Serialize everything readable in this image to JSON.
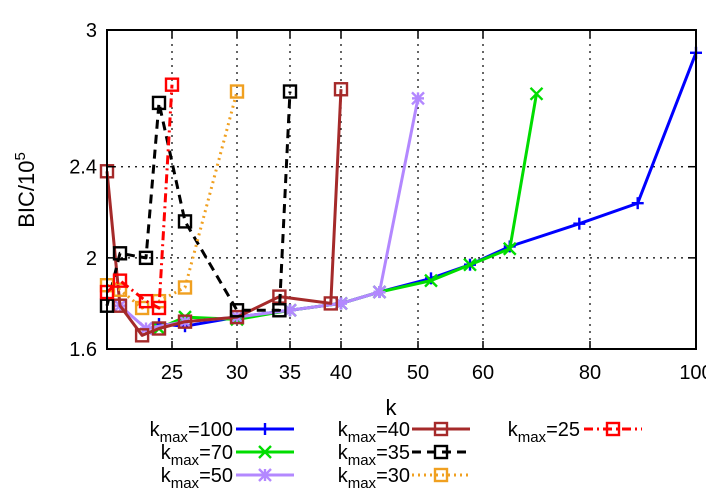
{
  "chart_data": {
    "type": "line",
    "title": "",
    "xlabel": "k",
    "ylabel": "BIC/10^5",
    "ylabel_base": "BIC/10",
    "ylabel_sup": "5",
    "ylim": [
      1.6,
      3.0
    ],
    "y_ticks": [
      {
        "value": 1.6,
        "label": "1.6"
      },
      {
        "value": 2.0,
        "label": "2"
      },
      {
        "value": 2.4,
        "label": "2.4"
      },
      {
        "value": 3.0,
        "label": "3"
      }
    ],
    "x_axis_note": "nonlinear k axis; k=20 at left edge, k=100 at right edge",
    "xlim": [
      20,
      100
    ],
    "x_ticks": [
      {
        "value": 25,
        "label": "25"
      },
      {
        "value": 30,
        "label": "30"
      },
      {
        "value": 35,
        "label": "35"
      },
      {
        "value": 40,
        "label": "40"
      },
      {
        "value": 50,
        "label": "50"
      },
      {
        "value": 60,
        "label": "60"
      },
      {
        "value": 80,
        "label": "80"
      },
      {
        "value": 100,
        "label": "100"
      }
    ],
    "x_grid_ticks": [
      25,
      30,
      35,
      40,
      50,
      60,
      80
    ],
    "grid": true,
    "legend_position": "bottom",
    "series": [
      {
        "name": "k_max=100",
        "legend_base": "k",
        "legend_sub": "max",
        "legend_value": "=100",
        "color": "#0000ff",
        "dash": "solid",
        "marker": "plus",
        "points": [
          [
            24,
            1.71
          ],
          [
            26,
            1.7
          ],
          [
            30,
            1.74
          ],
          [
            35,
            1.77
          ],
          [
            40,
            1.8
          ],
          [
            45,
            1.85
          ],
          [
            52,
            1.91
          ],
          [
            58,
            1.97
          ],
          [
            65,
            2.05
          ],
          [
            78,
            2.15
          ],
          [
            89,
            2.24
          ],
          [
            100,
            2.9
          ]
        ]
      },
      {
        "name": "k_max=70",
        "legend_base": "k",
        "legend_sub": "max",
        "legend_value": "=70",
        "color": "#00dd00",
        "dash": "solid",
        "marker": "x",
        "points": [
          [
            24,
            1.69
          ],
          [
            26,
            1.74
          ],
          [
            30,
            1.73
          ],
          [
            35,
            1.77
          ],
          [
            40,
            1.8
          ],
          [
            45,
            1.85
          ],
          [
            52,
            1.9
          ],
          [
            58,
            1.97
          ],
          [
            65,
            2.04
          ],
          [
            70,
            2.72
          ]
        ]
      },
      {
        "name": "k_max=50",
        "legend_base": "k",
        "legend_sub": "max",
        "legend_value": "=50",
        "color": "#b388ff",
        "dash": "solid",
        "marker": "star",
        "points": [
          [
            21,
            1.79
          ],
          [
            23,
            1.69
          ],
          [
            26,
            1.72
          ],
          [
            30,
            1.74
          ],
          [
            35,
            1.77
          ],
          [
            40,
            1.8
          ],
          [
            45,
            1.85
          ],
          [
            50,
            2.7
          ]
        ]
      },
      {
        "name": "k_max=40",
        "legend_base": "k",
        "legend_sub": "max",
        "legend_value": "=40",
        "color": "#a52a2a",
        "dash": "solid",
        "marker": "square",
        "points": [
          [
            20,
            2.38
          ],
          [
            21,
            1.79
          ],
          [
            22.7,
            1.66
          ],
          [
            24,
            1.69
          ],
          [
            26,
            1.72
          ],
          [
            30,
            1.74
          ],
          [
            34,
            1.83
          ],
          [
            39,
            1.8
          ],
          [
            40,
            2.74
          ]
        ]
      },
      {
        "name": "k_max=35",
        "legend_base": "k",
        "legend_sub": "max",
        "legend_value": "=35",
        "color": "#000000",
        "dash": "dashed",
        "marker": "square",
        "points": [
          [
            20,
            1.79
          ],
          [
            21,
            2.02
          ],
          [
            23,
            2.0
          ],
          [
            24,
            2.68
          ],
          [
            26,
            2.16
          ],
          [
            30,
            1.77
          ],
          [
            34,
            1.77
          ],
          [
            35,
            2.73
          ]
        ]
      },
      {
        "name": "k_max=30",
        "legend_base": "k",
        "legend_sub": "max",
        "legend_value": "=30",
        "color": "#f0a020",
        "dash": "dotted",
        "marker": "square",
        "points": [
          [
            20,
            1.88
          ],
          [
            21,
            1.86
          ],
          [
            22.7,
            1.78
          ],
          [
            24,
            1.81
          ],
          [
            26,
            1.87
          ],
          [
            30,
            2.73
          ]
        ]
      },
      {
        "name": "k_max=25",
        "legend_base": "k",
        "legend_sub": "max",
        "legend_value": "=25",
        "color": "#ff0000",
        "dash": "dashdot",
        "marker": "square",
        "points": [
          [
            20,
            1.85
          ],
          [
            21,
            1.9
          ],
          [
            23,
            1.81
          ],
          [
            24,
            1.78
          ],
          [
            25,
            2.76
          ]
        ]
      }
    ]
  }
}
